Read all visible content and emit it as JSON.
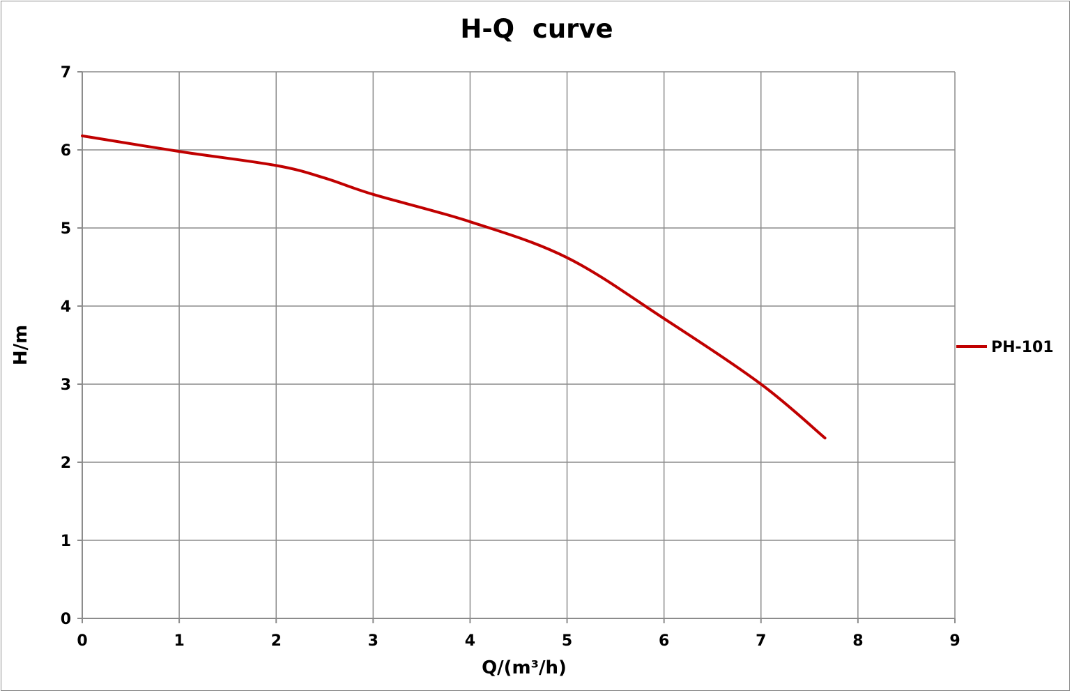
{
  "chart_data": {
    "type": "line",
    "title": "H-Q  curve",
    "xlabel": "Q/(m³/h)",
    "ylabel": "H/m",
    "xlim": [
      0,
      9
    ],
    "ylim": [
      0,
      7
    ],
    "xticks": [
      "0",
      "1",
      "2",
      "3",
      "4",
      "5",
      "6",
      "7",
      "8",
      "9"
    ],
    "yticks": [
      "0",
      "1",
      "2",
      "3",
      "4",
      "5",
      "6",
      "7"
    ],
    "grid": true,
    "legend_position": "right",
    "series": [
      {
        "name": "PH-101",
        "color": "#c00000",
        "x": [
          0,
          1,
          2,
          2.5,
          3,
          4,
          5,
          6,
          7,
          7.66
        ],
        "y": [
          6.18,
          5.98,
          5.8,
          5.64,
          5.43,
          5.08,
          4.62,
          3.84,
          3.0,
          2.31
        ]
      }
    ]
  }
}
